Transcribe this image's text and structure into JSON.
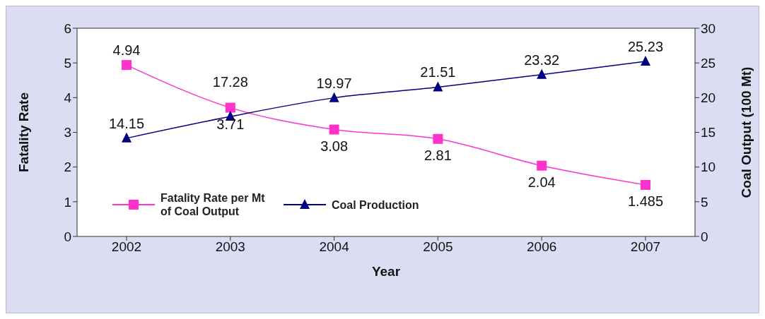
{
  "chart_data": {
    "type": "line",
    "xlabel": "Year",
    "ylabel": "Fatality Rate",
    "y2label": "Coal Output (100 Mt)",
    "categories": [
      "2002",
      "2003",
      "2004",
      "2005",
      "2006",
      "2007"
    ],
    "series": [
      {
        "name": "Fatality Rate per Mt of Coal Output",
        "color": "#ff33cc",
        "marker": "square",
        "values": [
          4.94,
          3.71,
          3.08,
          2.81,
          2.04,
          1.485
        ]
      },
      {
        "name": "Coal Production",
        "color": "#000080",
        "marker": "triangle",
        "axis": "y2",
        "values": [
          14.15,
          17.28,
          19.97,
          21.51,
          23.32,
          25.23
        ]
      }
    ],
    "ylim": [
      0,
      6
    ],
    "yticks": [
      0,
      1,
      2,
      3,
      4,
      5,
      6
    ],
    "y2lim": [
      0,
      30
    ],
    "y2ticks": [
      0,
      5,
      10,
      15,
      20,
      25,
      30
    ],
    "data_labels": true,
    "legend": "bottom left",
    "line_style": "solid"
  }
}
